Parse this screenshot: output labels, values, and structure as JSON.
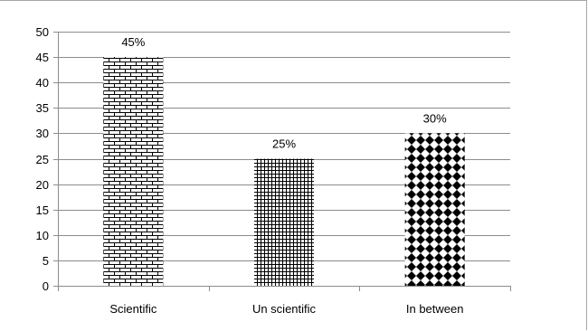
{
  "chart_data": {
    "type": "bar",
    "title": "",
    "xlabel": "",
    "ylabel": "",
    "ylim": [
      0,
      50
    ],
    "yticks": [
      0,
      5,
      10,
      15,
      20,
      25,
      30,
      35,
      40,
      45,
      50
    ],
    "grid": true,
    "legend": "none",
    "categories": [
      "Scientific",
      "Un scientific",
      "In between"
    ],
    "values": [
      45,
      25,
      30
    ],
    "data_labels": [
      "45%",
      "25%",
      "30%"
    ],
    "patterns": [
      "brick",
      "grid",
      "diamond"
    ],
    "colors": {
      "bar_fill": "#000000",
      "bar_background": "#ffffff",
      "gridline": "#8c8c8c",
      "axis": "#8c8c8c"
    }
  }
}
